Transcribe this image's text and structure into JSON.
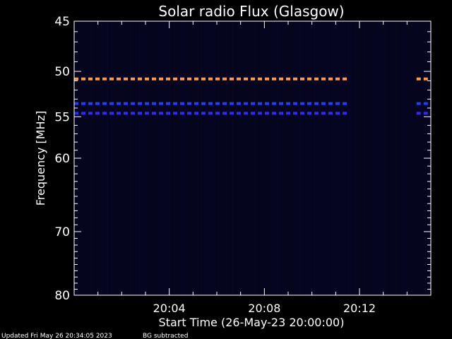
{
  "chart_data": {
    "type": "heatmap",
    "title": "Solar radio Flux (Glasgow)",
    "xlabel": "Start Time (26-May-23 20:00:00)",
    "ylabel": "Frequency [MHz]",
    "x_unit": "minutes after 20:00:00",
    "xlim": [
      0,
      15
    ],
    "ylim": [
      80,
      45
    ],
    "y_tick_labels": [
      "45",
      "50",
      "55",
      "60",
      "70",
      "80"
    ],
    "y_tick_values": [
      45,
      50,
      55,
      60,
      70,
      80
    ],
    "x_tick_labels": [
      "20:04",
      "20:08",
      "20:12"
    ],
    "x_tick_values": [
      4,
      8,
      12
    ],
    "interference_lines": [
      {
        "frequency_mhz": 50.8,
        "x_start": 0,
        "x_end": 11.5,
        "color": "#ff9a4a"
      },
      {
        "frequency_mhz": 50.8,
        "x_start": 14.4,
        "x_end": 15,
        "color": "#ff9a4a"
      },
      {
        "frequency_mhz": 53.5,
        "x_start": 0,
        "x_end": 11.5,
        "color": "#1f3dff"
      },
      {
        "frequency_mhz": 53.5,
        "x_start": 14.4,
        "x_end": 15,
        "color": "#1f3dff"
      },
      {
        "frequency_mhz": 54.6,
        "x_start": 0,
        "x_end": 11.5,
        "color": "#2a2aff"
      },
      {
        "frequency_mhz": 54.6,
        "x_start": 14.4,
        "x_end": 15,
        "color": "#2a2aff"
      }
    ],
    "grid": false,
    "background_color": "#000000",
    "field_color": "#05051a"
  },
  "footer": {
    "updated": "Updated Fri May 26 20:34:05 2023",
    "note": "BG subtracted"
  }
}
